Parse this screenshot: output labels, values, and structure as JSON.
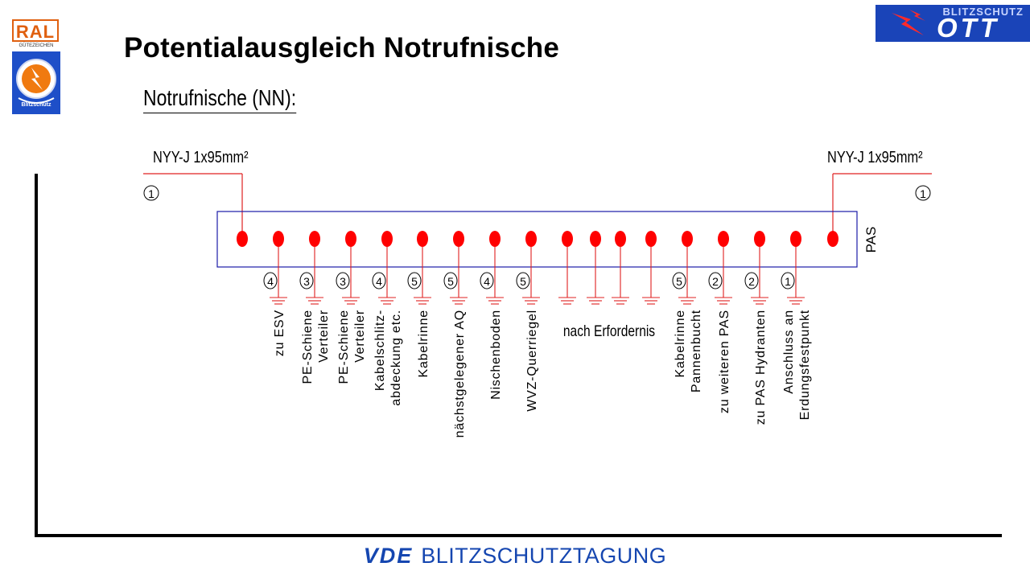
{
  "title": "Potentialausgleich Notrufnische",
  "subtitle": "Notrufnische (NN):",
  "logos": {
    "ral_text": "RAL",
    "ral_subtext": "GÜTEZEICHEN",
    "badge_text": "Blitzschutz",
    "company_top": "BLITZSCHUTZ",
    "company_name": "OTT"
  },
  "footer": {
    "vde": "VDE",
    "text": "BLITZSCHUTZTAGUNG"
  },
  "diagram": {
    "cable_label_left": "NYY-J 1x95mm²",
    "cable_label_right": "NYY-J 1x95mm²",
    "cable_number_left": "1",
    "cable_number_right": "1",
    "bar_label": "PAS",
    "group_label": "nach Erfordernis",
    "connections": [
      {
        "number": "4",
        "lines": [
          "zu ESV"
        ]
      },
      {
        "number": "3",
        "lines": [
          "PE-Schiene",
          "Verteiler"
        ]
      },
      {
        "number": "3",
        "lines": [
          "PE-Schiene",
          "Verteiler"
        ]
      },
      {
        "number": "4",
        "lines": [
          "Kabelschlitz-",
          "abdeckung etc."
        ]
      },
      {
        "number": "5",
        "lines": [
          "Kabelrinne"
        ]
      },
      {
        "number": "5",
        "lines": [
          "nächstgelegener AQ"
        ]
      },
      {
        "number": "4",
        "lines": [
          "Nischenboden"
        ]
      },
      {
        "number": "5",
        "lines": [
          "WVZ-Querriegel"
        ]
      },
      {
        "number": "5",
        "lines": [
          "Kabelrinne",
          "Pannenbucht"
        ]
      },
      {
        "number": "2",
        "lines": [
          "zu weiteren PAS"
        ]
      },
      {
        "number": "2",
        "lines": [
          "zu PAS Hydranten"
        ]
      },
      {
        "number": "1",
        "lines": [
          "Anschluss an",
          "Erdungsfestpunkt"
        ]
      }
    ],
    "colors": {
      "line": "#e02020",
      "bar": "#1a1aa8",
      "dot": "#ff0000"
    }
  }
}
